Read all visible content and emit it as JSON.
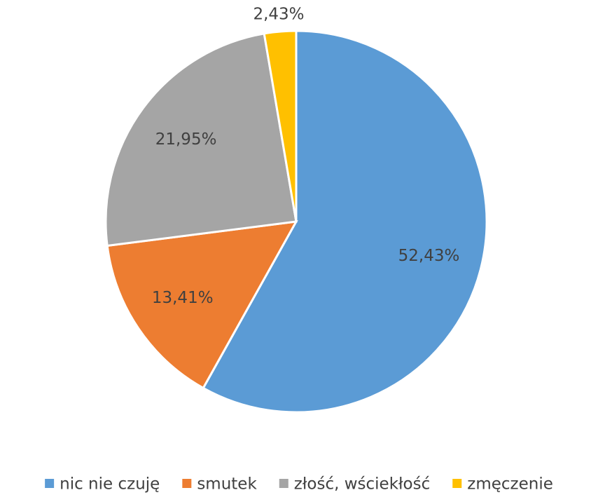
{
  "chart_data": {
    "type": "pie",
    "categories": [
      "nic nie czuję",
      "smutek",
      "złość, wściekłość",
      "zmęczenie"
    ],
    "values": [
      52.43,
      13.41,
      21.95,
      2.43
    ],
    "value_labels": [
      "52,43%",
      "13,41%",
      "21,95%",
      "2,43%"
    ],
    "colors": [
      "#5b9bd5",
      "#ed7d31",
      "#a5a5a5",
      "#ffc000"
    ],
    "legend": "bottom"
  }
}
